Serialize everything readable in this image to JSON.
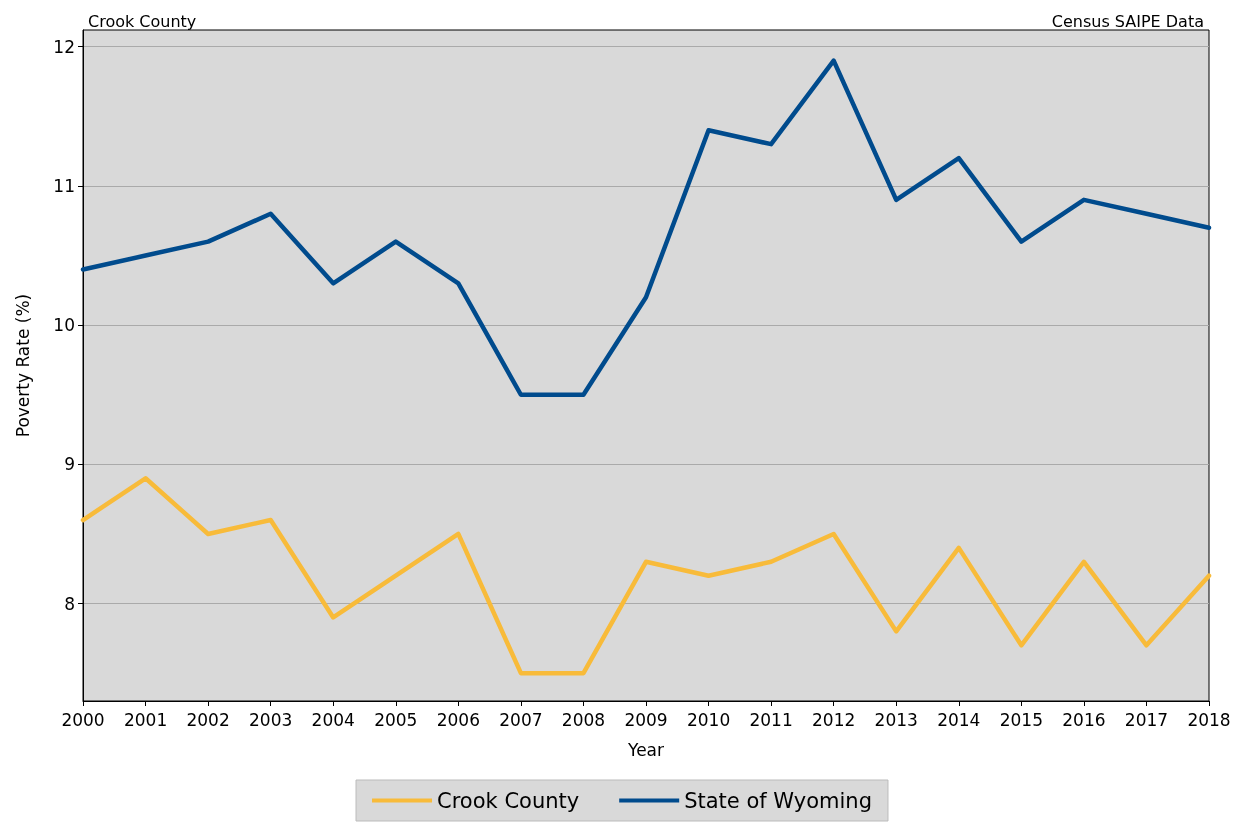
{
  "chart_data": {
    "type": "line",
    "title": "Crook County",
    "annotations": [
      "Census SAIPE Data"
    ],
    "xlabel": "Year",
    "ylabel": "Poverty Rate (%)",
    "x": [
      2000,
      2001,
      2002,
      2003,
      2004,
      2005,
      2006,
      2007,
      2008,
      2009,
      2010,
      2011,
      2012,
      2013,
      2014,
      2015,
      2016,
      2017,
      2018
    ],
    "series": [
      {
        "name": "Crook County",
        "color": "#f8bb3a",
        "values": [
          8.6,
          8.9,
          8.5,
          8.6,
          7.9,
          8.2,
          8.5,
          7.5,
          7.5,
          8.3,
          8.2,
          8.3,
          8.5,
          7.8,
          8.4,
          7.7,
          8.3,
          7.7,
          8.2
        ]
      },
      {
        "name": "State of Wyoming",
        "color": "#004b8d",
        "values": [
          10.4,
          10.5,
          10.6,
          10.8,
          10.3,
          10.6,
          10.3,
          9.5,
          9.5,
          10.2,
          11.4,
          11.3,
          11.9,
          10.9,
          11.2,
          10.6,
          10.9,
          10.8,
          10.7
        ]
      }
    ],
    "xlim": [
      2000,
      2018
    ],
    "xticks": [
      2000,
      2001,
      2002,
      2003,
      2004,
      2005,
      2006,
      2007,
      2008,
      2009,
      2010,
      2011,
      2012,
      2013,
      2014,
      2015,
      2016,
      2017,
      2018
    ],
    "ylim": [
      7.3,
      12.12
    ],
    "yticks": [
      8,
      9,
      10,
      11,
      12
    ],
    "grid": "y",
    "legend": "bottom",
    "marker": "none",
    "line_style": "solid"
  }
}
